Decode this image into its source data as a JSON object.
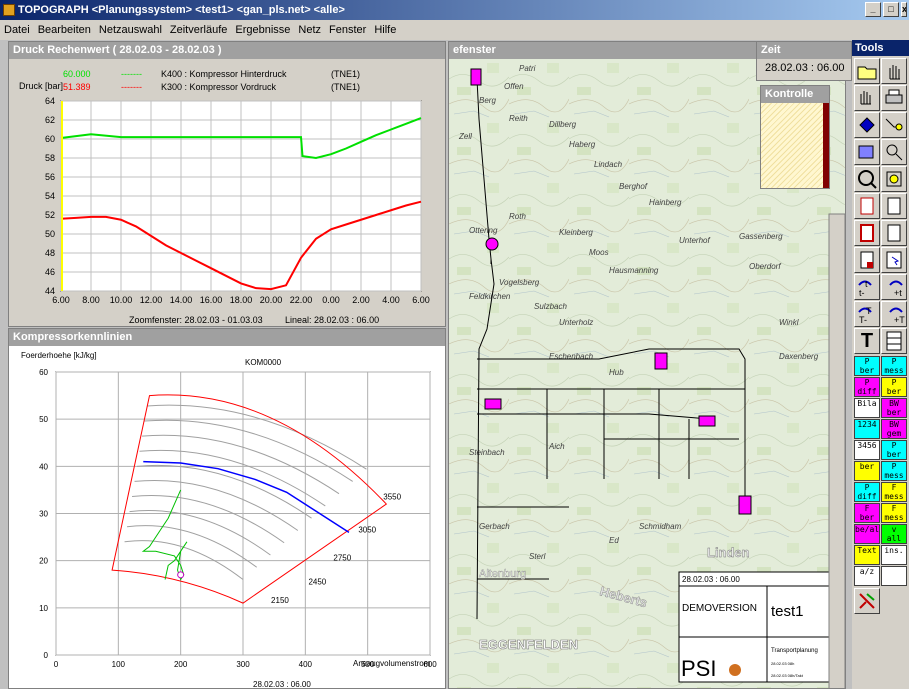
{
  "window": {
    "title": "TOPOGRAPH <Planungssystem> <test1> <gan_pls.net> <alle>",
    "min": "_",
    "max": "□",
    "close": "x"
  },
  "menu": [
    "Datei",
    "Bearbeiten",
    "Netzauswahl",
    "Zeitverläufe",
    "Ergebnisse",
    "Netz",
    "Fenster",
    "Hilfe"
  ],
  "druck_panel": {
    "title": "Druck Rechenwert (  28.02.03 -  28.02.03 )",
    "ylabel": "Druck [bar]",
    "legend": [
      {
        "value": "60.000",
        "line": "-------",
        "name": "K400 : Kompressor Hinterdruck",
        "code": "(TNE1)",
        "color": "#00e000"
      },
      {
        "value": "51.389",
        "line": "-------",
        "name": "K300 : Kompressor Vordruck",
        "code": "(TNE1)",
        "color": "#ff0000"
      }
    ],
    "footer_zoom": "Zoomfenster:  28.02.03 -  01.03.03",
    "footer_lineal": "Lineal:   28.02.03 : 06.00"
  },
  "chart_data": [
    {
      "type": "line",
      "title": "Druck Rechenwert (  28.02.03 -  28.02.03 )",
      "ylabel": "Druck [bar]",
      "xlabel": "",
      "ylim": [
        44,
        64
      ],
      "x_ticks": [
        "6.00",
        "8.00",
        "10.00",
        "12.00",
        "14.00",
        "16.00",
        "18.00",
        "20.00",
        "22.00",
        "0.00",
        "2.00",
        "4.00",
        "6.00"
      ],
      "y_ticks": [
        44,
        46,
        48,
        50,
        52,
        54,
        56,
        58,
        60,
        62,
        64
      ],
      "grid": true,
      "series": [
        {
          "name": "K400 : Kompressor Hinterdruck",
          "color": "#00e000",
          "x": [
            0,
            1,
            2,
            4,
            6,
            8,
            10,
            12,
            14,
            16,
            16.1,
            17,
            18,
            19,
            20,
            21,
            22,
            23,
            24
          ],
          "y": [
            60.1,
            60.3,
            60.5,
            60.2,
            60.2,
            60.2,
            60.2,
            60.2,
            60.2,
            60.2,
            58.2,
            58.0,
            58.4,
            59.0,
            59.7,
            60.4,
            61.0,
            61.6,
            62.2
          ]
        },
        {
          "name": "K300 : Kompressor Vordruck",
          "color": "#ff0000",
          "x": [
            0,
            1,
            2,
            3,
            4,
            5,
            6,
            7,
            8,
            9,
            10,
            11,
            12,
            13,
            14,
            15,
            16,
            17,
            18,
            19,
            20,
            21,
            22,
            23,
            24
          ],
          "y": [
            51.6,
            51.7,
            51.8,
            51.8,
            51.5,
            50.8,
            49.8,
            48.8,
            48.0,
            47.2,
            46.4,
            45.6,
            44.8,
            44.3,
            44.2,
            44.6,
            47.5,
            49.5,
            50.5,
            51.0,
            51.5,
            52.0,
            52.5,
            53.0,
            53.4
          ]
        }
      ]
    },
    {
      "type": "line",
      "title": "KOM0000",
      "ylabel": "Foerderhoehe [kJ/kg]",
      "xlabel": "Ansaugvolumenstrom",
      "xlim": [
        0,
        600
      ],
      "ylim": [
        0,
        60
      ],
      "x_ticks": [
        0,
        100,
        200,
        300,
        400,
        500,
        600
      ],
      "y_ticks": [
        0,
        10,
        20,
        30,
        40,
        50,
        60
      ],
      "grid": true,
      "speed_labels": [
        "3550",
        "3050",
        "2750",
        "2450",
        "2150"
      ],
      "series": [
        {
          "name": "",
          "color": "#0000ff",
          "x": [
            140,
            200,
            260,
            320,
            370,
            470
          ],
          "y": [
            41,
            40.7,
            39.5,
            37.2,
            34.5,
            26
          ]
        },
        {
          "name": "",
          "color": "#00c000",
          "x": [
            200,
            190,
            180,
            170,
            150,
            140,
            160,
            190,
            200,
            205,
            200,
            195,
            200,
            210,
            190,
            180,
            175
          ],
          "y": [
            35,
            32,
            29,
            27,
            23,
            22,
            22,
            21,
            19,
            17,
            16,
            18,
            22,
            24,
            20,
            19,
            16
          ]
        }
      ],
      "footer": "28.02.03 : 06.00"
    }
  ],
  "kompressor_panel": {
    "title": "Kompressorkennlinien",
    "ylabel": "Foerderhoehe [kJ/kg]",
    "chart_title": "KOM0000",
    "xlabel": "Ansaugvolumenstrom",
    "footer": "28.02.03 : 06.00"
  },
  "map_panel": {
    "title": "efenster",
    "labels": {
      "demo": "DEMOVERSION",
      "case": "test1",
      "date": "28.02.03 : 06.00",
      "sub": "Transportplanung",
      "logo": "PSI",
      "town_main": "EGGENFELDEN",
      "town_a": "Linden",
      "town_b": "Heberts",
      "town_c": "Altenburg",
      "small1": "28.02.03 08h",
      "small2": "28.02.03 08h/Takt"
    },
    "places": [
      "Patri",
      "Offen",
      "Berg",
      "Zell",
      "Reith",
      "Dillberg",
      "Haberg",
      "Lindach",
      "Berghof",
      "Hainberg",
      "Roth",
      "Ottering",
      "Kleinberg",
      "Moos",
      "Hausmanning",
      "Unterhof",
      "Gassenberg",
      "Oberdorf",
      "Vogelsberg",
      "Feldkirchen",
      "Sulzbach",
      "Unterholz",
      "Winkl",
      "Eschenbach",
      "Hub",
      "Daxenberg",
      "Steinbach",
      "Aich",
      "Schmidham",
      "Gerbach",
      "Ed",
      "Sterl"
    ]
  },
  "zeit_panel": {
    "title": "Zeit",
    "value": "28.02.03 : 06.00"
  },
  "kontrolle_panel": {
    "title": "Kontrolle"
  },
  "tools": {
    "title": "Tools",
    "obj_labels": [
      {
        "top": "P",
        "bottom": "ber"
      },
      {
        "top": "P",
        "bottom": "mess"
      },
      {
        "top": "P",
        "bottom": "diff"
      },
      {
        "top": "P",
        "bottom": "ber"
      },
      {
        "top": "Bila",
        "bottom": ""
      },
      {
        "top": "BW",
        "bottom": "ber"
      },
      {
        "top": "",
        "bottom": "1234"
      },
      {
        "top": "BW",
        "bottom": "gem"
      },
      {
        "top": "3456",
        "bottom": ""
      },
      {
        "top": "P",
        "bottom": "ber"
      },
      {
        "top": "",
        "bottom": "ber"
      },
      {
        "top": "P",
        "bottom": "mess"
      },
      {
        "top": "P",
        "bottom": "diff"
      },
      {
        "top": "F",
        "bottom": "mess"
      },
      {
        "top": "F",
        "bottom": "ber"
      },
      {
        "top": "F",
        "bottom": "mess"
      },
      {
        "top": "",
        "bottom": "be/al"
      },
      {
        "top": "v",
        "bottom": "all"
      },
      {
        "top": "",
        "bottom": "Text"
      },
      {
        "top": "",
        "bottom": "ins."
      },
      {
        "top": "a/z",
        "bottom": ""
      },
      {
        "top": "",
        "bottom": ""
      }
    ],
    "big_t": "T"
  },
  "colors": {
    "titlebar": "#0a246a",
    "cyan": "#00ffff",
    "magenta": "#ff00ff",
    "yellow": "#ffff00",
    "red": "#ff0000",
    "green": "#00e000"
  }
}
